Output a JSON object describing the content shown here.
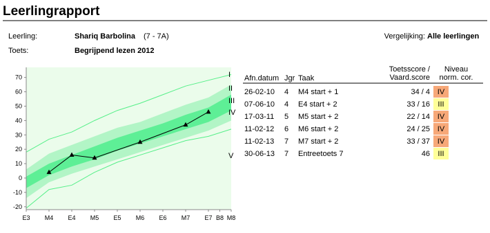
{
  "header": {
    "title": "Leerlingrapport"
  },
  "info": {
    "student_label": "Leerling:",
    "student": "Shariq Barbolina",
    "group": "(7 - 7A)",
    "test_label": "Toets:",
    "test": "Begrijpend lezen 2012",
    "comparison_label": "Vergelijking:",
    "comparison": "Alle leerlingen"
  },
  "chart_data": {
    "type": "line",
    "x": [
      3.5,
      4,
      4.5,
      5.5,
      6.5,
      7
    ],
    "values": [
      4,
      16,
      14,
      25,
      37,
      46
    ],
    "color": "#000000",
    "xlim": [
      3,
      7.5
    ],
    "xticks": [
      {
        "value": 3,
        "label": "E3"
      },
      {
        "value": 3.5,
        "label": "M4"
      },
      {
        "value": 4,
        "label": "E4"
      },
      {
        "value": 4.5,
        "label": "M5"
      },
      {
        "value": 5,
        "label": "E5"
      },
      {
        "value": 5.5,
        "label": "M6"
      },
      {
        "value": 6,
        "label": "E6"
      },
      {
        "value": 6.5,
        "label": "M7"
      },
      {
        "value": 7,
        "label": "E7"
      },
      {
        "value": 7.25,
        "label": "B8"
      },
      {
        "value": 7.5,
        "label": "M8"
      }
    ],
    "ylim": [
      -22,
      77
    ],
    "yticks": [
      -20,
      -10,
      0,
      10,
      20,
      30,
      40,
      50,
      60,
      70
    ],
    "bands": {
      "x": [
        3,
        3.5,
        4,
        4.5,
        5,
        5.5,
        6,
        6.5,
        7,
        7.5
      ],
      "boundaries": [
        [
          18,
          27,
          32,
          40,
          47,
          52,
          58,
          64,
          68,
          72
        ],
        [
          6,
          17,
          23,
          29,
          35,
          39,
          45,
          51,
          56,
          65
        ],
        [
          1,
          10,
          16,
          22,
          28,
          33,
          38,
          44,
          49,
          58
        ],
        [
          -7,
          2,
          8,
          13,
          19,
          24,
          29,
          34,
          39,
          47
        ],
        [
          -14,
          -3,
          3,
          8,
          13,
          18,
          23,
          28,
          33,
          40
        ],
        [
          -21,
          -8,
          -5,
          4,
          11,
          16,
          21,
          26,
          29,
          34
        ]
      ],
      "level_labels": [
        "I",
        "II",
        "III",
        "IV",
        "V"
      ]
    }
  },
  "table": {
    "headers": [
      [
        "Afn.datum"
      ],
      [
        "Jgr"
      ],
      [
        "Taak"
      ],
      [
        "Toetsscore /",
        "Vaard.score"
      ],
      [
        "Niveau",
        "norm. cor."
      ]
    ],
    "rows": [
      [
        "26-02-10",
        4,
        "M4 start + 1",
        "34 / 4",
        "IV"
      ],
      [
        "07-06-10",
        4,
        "E4 start + 2",
        "33 / 16",
        "III"
      ],
      [
        "17-03-11",
        5,
        "M5 start + 2",
        "22 / 14",
        "IV"
      ],
      [
        "11-02-12",
        6,
        "M6 start + 2",
        "24 / 25",
        "IV"
      ],
      [
        "11-02-13",
        7,
        "M7 start + 2",
        "33 / 37",
        "IV"
      ],
      [
        "30-06-13",
        7,
        "Entreetoets 7",
        "46",
        "III"
      ]
    ]
  }
}
